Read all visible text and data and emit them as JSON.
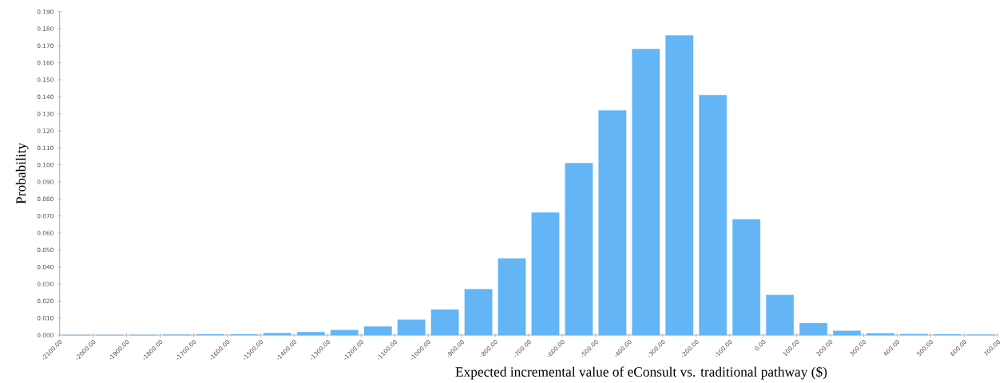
{
  "chart_data": {
    "type": "histogram",
    "xlabel": "Expected incremental value of eConsult vs. traditional pathway ($)",
    "ylabel": "Probability",
    "bins": [
      -2100,
      -2000,
      -1900,
      -1800,
      -1700,
      -1600,
      -1500,
      -1400,
      -1300,
      -1200,
      -1100,
      -1000,
      -900,
      -800,
      -700,
      -600,
      -500,
      -400,
      -300,
      -200,
      -100,
      0,
      100,
      200,
      300,
      400,
      500,
      600,
      700
    ],
    "values": [
      0,
      0,
      0,
      0.0002,
      0.0005,
      0.0005,
      0.0012,
      0.0018,
      0.0029,
      0.005,
      0.009,
      0.015,
      0.027,
      0.045,
      0.072,
      0.101,
      0.132,
      0.168,
      0.176,
      0.141,
      0.068,
      0.0235,
      0.007,
      0.0025,
      0.001,
      0.0006,
      0.0005,
      0.0002
    ],
    "color": "#64b5f6",
    "xlim": [
      -2100,
      700
    ],
    "xticks": [
      {
        "value": -2100,
        "label": "-2100.00"
      },
      {
        "value": -2000,
        "label": "-2000.00"
      },
      {
        "value": -1900,
        "label": "-1900.00"
      },
      {
        "value": -1800,
        "label": "-1800.00"
      },
      {
        "value": -1700,
        "label": "-1700.00"
      },
      {
        "value": -1600,
        "label": "-1600.00"
      },
      {
        "value": -1500,
        "label": "-1500.00"
      },
      {
        "value": -1400,
        "label": "-1400.00"
      },
      {
        "value": -1300,
        "label": "-1300.00"
      },
      {
        "value": -1200,
        "label": "-1200.00"
      },
      {
        "value": -1100,
        "label": "-1100.00"
      },
      {
        "value": -1000,
        "label": "-1000.00"
      },
      {
        "value": -900,
        "label": "-900.00"
      },
      {
        "value": -800,
        "label": "-800.00"
      },
      {
        "value": -700,
        "label": "-700.00"
      },
      {
        "value": -600,
        "label": "-600.00"
      },
      {
        "value": -500,
        "label": "-500.00"
      },
      {
        "value": -400,
        "label": "-400.00"
      },
      {
        "value": -300,
        "label": "-300.00"
      },
      {
        "value": -200,
        "label": "-200.00"
      },
      {
        "value": -100,
        "label": "-100.00"
      },
      {
        "value": 0,
        "label": "0.00"
      },
      {
        "value": 100,
        "label": "100.00"
      },
      {
        "value": 200,
        "label": "200.00"
      },
      {
        "value": 300,
        "label": "300.00"
      },
      {
        "value": 400,
        "label": "400.00"
      },
      {
        "value": 500,
        "label": "500.00"
      },
      {
        "value": 600,
        "label": "600.00"
      },
      {
        "value": 700,
        "label": "700.00"
      }
    ],
    "ylim": [
      0,
      0.19
    ],
    "yticks": [
      {
        "value": 0,
        "label": "0.000"
      },
      {
        "value": 0.01,
        "label": "0.010"
      },
      {
        "value": 0.02,
        "label": "0.020"
      },
      {
        "value": 0.03,
        "label": "0.030"
      },
      {
        "value": 0.04,
        "label": "0.040"
      },
      {
        "value": 0.05,
        "label": "0.050"
      },
      {
        "value": 0.06,
        "label": "0.060"
      },
      {
        "value": 0.07,
        "label": "0.070"
      },
      {
        "value": 0.08,
        "label": "0.080"
      },
      {
        "value": 0.09,
        "label": "0.090"
      },
      {
        "value": 0.1,
        "label": "0.100"
      },
      {
        "value": 0.11,
        "label": "0.110"
      },
      {
        "value": 0.12,
        "label": "0.120"
      },
      {
        "value": 0.13,
        "label": "0.130"
      },
      {
        "value": 0.14,
        "label": "0.140"
      },
      {
        "value": 0.15,
        "label": "0.150"
      },
      {
        "value": 0.16,
        "label": "0.160"
      },
      {
        "value": 0.17,
        "label": "0.170"
      },
      {
        "value": 0.18,
        "label": "0.180"
      },
      {
        "value": 0.19,
        "label": "0.190"
      }
    ]
  }
}
